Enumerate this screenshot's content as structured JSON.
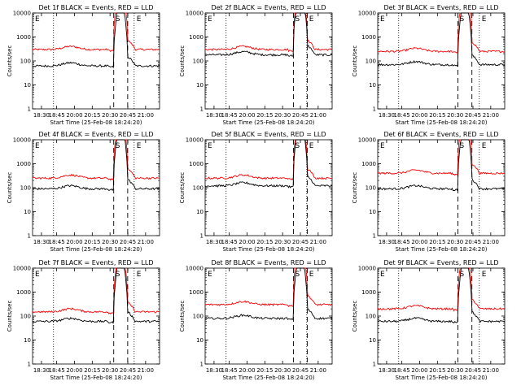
{
  "figure": {
    "panels": [
      {
        "title": "Det 1f BLACK = Events, RED = LLD",
        "black_base": 62,
        "red_base": 300,
        "flare_center": 20.32
      },
      {
        "title": "Det 2f BLACK = Events, RED = LLD",
        "black_base": 180,
        "red_base": 300,
        "flare_center": 20.47
      },
      {
        "title": "Det 3f BLACK = Events, RED = LLD",
        "black_base": 70,
        "red_base": 250,
        "flare_center": 20.3
      },
      {
        "title": "Det 4f BLACK = Events, RED = LLD",
        "black_base": 90,
        "red_base": 250,
        "flare_center": 20.32
      },
      {
        "title": "Det 5f BLACK = Events, RED = LLD",
        "black_base": 120,
        "red_base": 250,
        "flare_center": 20.47
      },
      {
        "title": "Det 6f BLACK = Events, RED = LLD",
        "black_base": 90,
        "red_base": 400,
        "flare_center": 20.3
      },
      {
        "title": "Det 7f BLACK = Events, RED = LLD",
        "black_base": 60,
        "red_base": 150,
        "flare_center": 20.32
      },
      {
        "title": "Det 8f BLACK = Events, RED = LLD",
        "black_base": 80,
        "red_base": 300,
        "flare_center": 20.47
      },
      {
        "title": "Det 9f BLACK = Events, RED = LLD",
        "black_base": 60,
        "red_base": 200,
        "flare_center": 20.3
      }
    ],
    "xlabel": "Start Time (25-Feb-08 18:24:20)",
    "ylabel": "Counts/sec",
    "xticks": [
      "18:30",
      "18:45",
      "20:00",
      "20:15",
      "20:30",
      "20:45",
      "21:00"
    ],
    "yticks": [
      "1",
      "10",
      "100",
      "1000",
      "10000"
    ],
    "markers": {
      "start": "E",
      "saa": "S",
      "end": "E"
    }
  },
  "chart_data": {
    "type": "line",
    "layout": "3x3 grid",
    "y_scale": "log",
    "ylim": [
      1,
      10000
    ],
    "xlim": [
      "18:24",
      "21:04"
    ],
    "series_colors": {
      "events": "#000000",
      "lld": "#ff0000"
    },
    "series_levels_counts_per_sec": [
      {
        "detector": "1f",
        "events": 62,
        "lld": 300
      },
      {
        "detector": "2f",
        "events": 180,
        "lld": 300
      },
      {
        "detector": "3f",
        "events": 70,
        "lld": 250
      },
      {
        "detector": "4f",
        "events": 90,
        "lld": 250
      },
      {
        "detector": "5f",
        "events": 120,
        "lld": 250
      },
      {
        "detector": "6f",
        "events": 90,
        "lld": 400
      },
      {
        "detector": "7f",
        "events": 60,
        "lld": 150
      },
      {
        "detector": "8f",
        "events": 80,
        "lld": 300
      },
      {
        "detector": "9f",
        "events": 60,
        "lld": 200
      }
    ],
    "grid": false
  }
}
